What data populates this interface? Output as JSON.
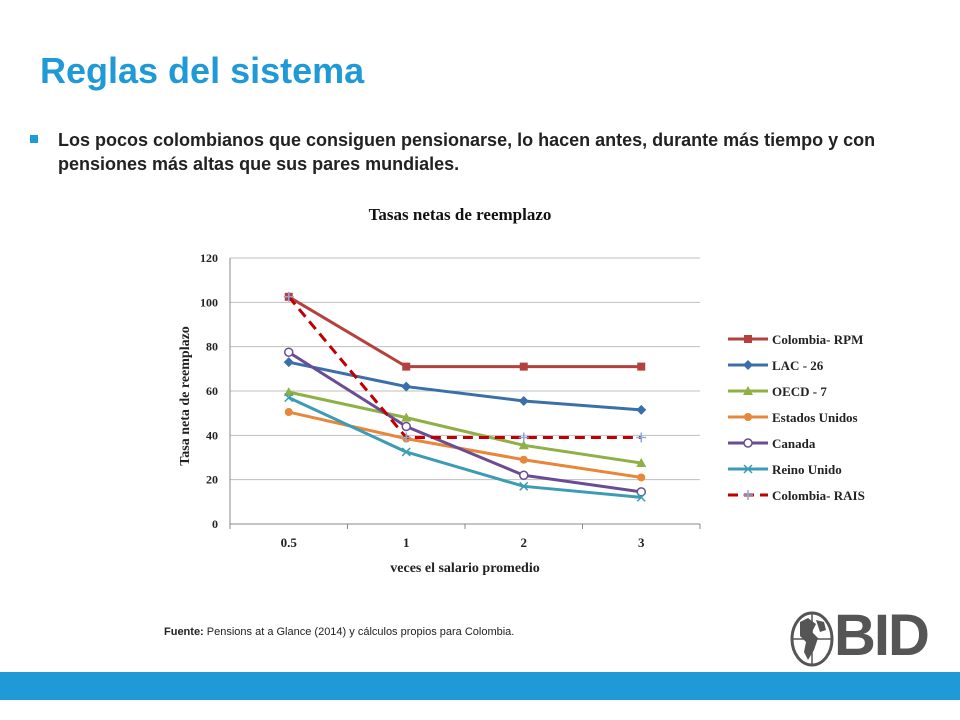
{
  "slide": {
    "title": "Reglas del sistema",
    "bullet": "Los pocos colombianos que consiguen pensionarse, lo hacen antes, durante más tiempo y con pensiones más altas que sus pares mundiales.",
    "source_label": "Fuente:",
    "source_text": " Pensions at a Glance (2014) y cálculos propios para Colombia.",
    "logo_text": "BID",
    "accent_color": "#1f9ad6",
    "footer_color": "#1f9ad6"
  },
  "chart_data": {
    "type": "line",
    "title": "Tasas netas de reemplazo",
    "xlabel": "veces el salario promedio",
    "ylabel": "Tasa neta de reemplazo",
    "categories": [
      "0.5",
      "1",
      "2",
      "3"
    ],
    "ylim": [
      0,
      120
    ],
    "yticks": [
      0,
      20,
      40,
      60,
      80,
      100,
      120
    ],
    "grid": true,
    "legend_position": "right",
    "series": [
      {
        "name": "Colombia- RPM",
        "values": [
          102.5,
          71,
          71,
          71
        ],
        "color": "#b5413f",
        "marker": "square",
        "dash": false
      },
      {
        "name": "LAC - 26",
        "values": [
          73,
          62,
          55.5,
          51.5
        ],
        "color": "#3b6fa9",
        "marker": "diamond",
        "dash": false
      },
      {
        "name": "OECD - 7",
        "values": [
          59.5,
          48,
          35.5,
          27.5
        ],
        "color": "#8eb045",
        "marker": "triangle",
        "dash": false
      },
      {
        "name": "Estados Unidos",
        "values": [
          50.5,
          38.5,
          29,
          21
        ],
        "color": "#e8863a",
        "marker": "circle",
        "dash": false
      },
      {
        "name": "Canada",
        "values": [
          77.5,
          44,
          22,
          14.5
        ],
        "color": "#6b4c93",
        "marker": "open-circle",
        "dash": false
      },
      {
        "name": "Reino Unido",
        "values": [
          57,
          32.5,
          17,
          12
        ],
        "color": "#3c9bb5",
        "marker": "x",
        "dash": false
      },
      {
        "name": "Colombia- RAIS",
        "values": [
          102.5,
          39,
          39,
          39
        ],
        "color": "#c00000",
        "marker": "plus",
        "dash": true
      }
    ]
  }
}
